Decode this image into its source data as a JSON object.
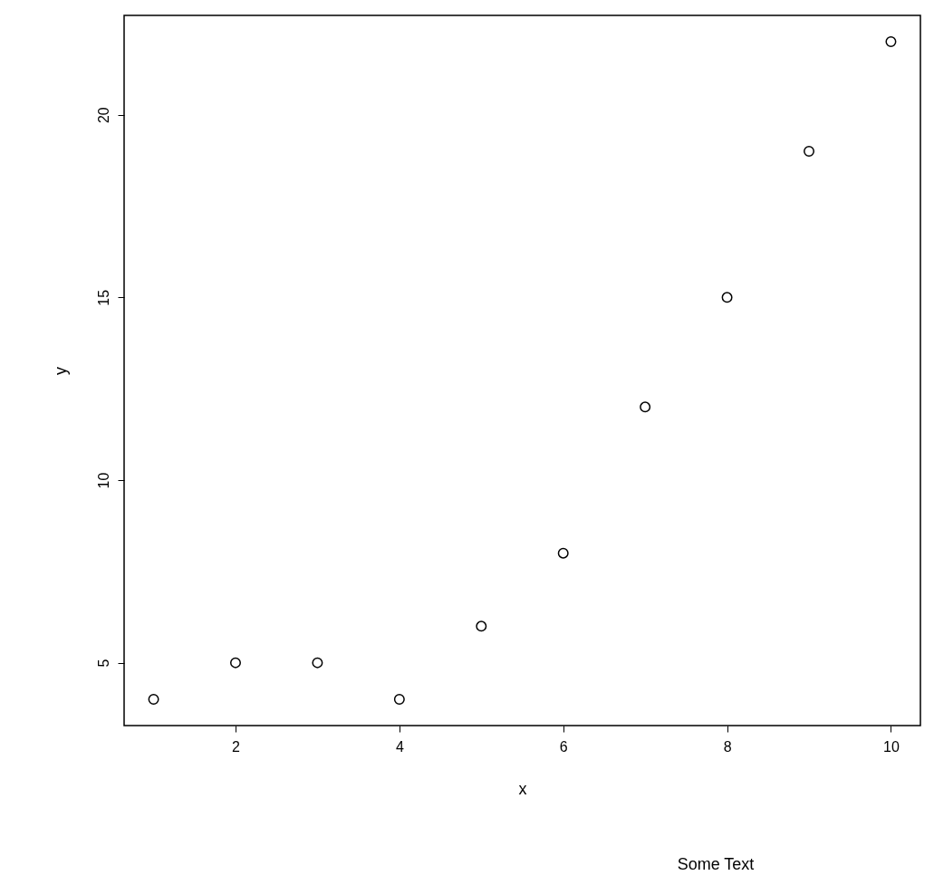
{
  "chart_data": {
    "type": "scatter",
    "xlabel": "x",
    "ylabel": "y",
    "x": [
      1,
      2,
      3,
      4,
      5,
      6,
      7,
      8,
      9,
      10
    ],
    "series": [
      {
        "color": "#000000",
        "values": [
          4,
          5,
          5,
          4,
          6,
          8,
          12,
          15,
          19,
          22
        ]
      }
    ],
    "xlim": [
      0.64,
      10.36
    ],
    "ylim": [
      3.28,
      22.72
    ],
    "xticks": [
      2,
      4,
      6,
      8,
      10
    ],
    "yticks": [
      5,
      10,
      15,
      20
    ],
    "marker": "circle",
    "grid": false,
    "annotations": [
      "Some Text"
    ]
  }
}
